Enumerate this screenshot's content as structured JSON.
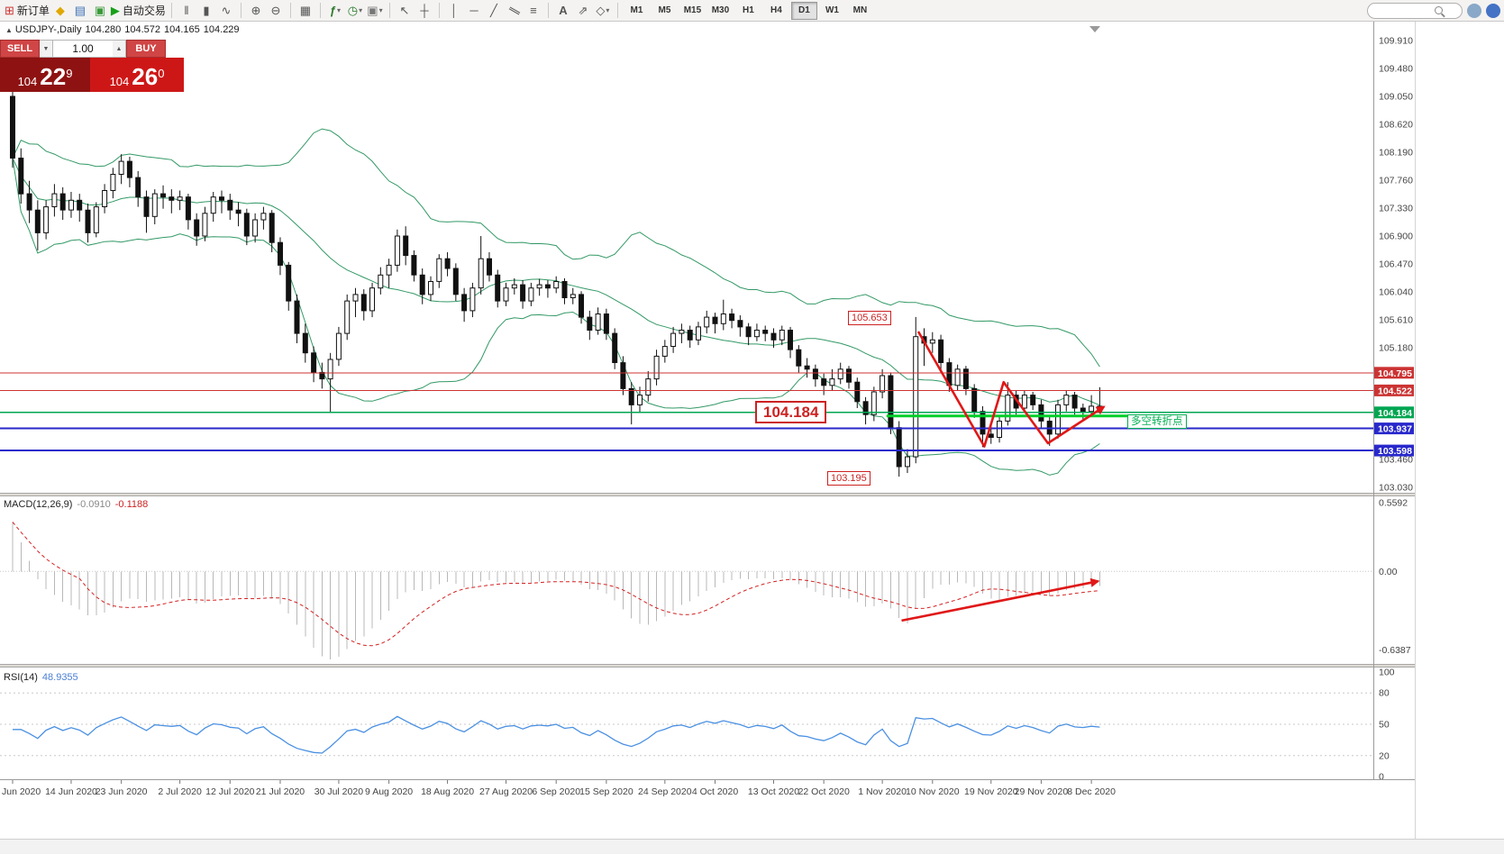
{
  "window": {
    "toolbar": {
      "new_order": "新订单",
      "autotrading": "自动交易",
      "timeframes": [
        "M1",
        "M5",
        "M15",
        "M30",
        "H1",
        "H4",
        "D1",
        "W1",
        "MN"
      ],
      "active_timeframe": "D1",
      "search_placeholder": "",
      "icons": {
        "new_order": "⊞",
        "mql": "◆",
        "market_watch": "▤",
        "data_window": "▣",
        "autotrading": "▶",
        "bars": "‖",
        "candles": "▮",
        "line": "∿",
        "zoom_in": "⊕",
        "zoom_out": "⊖",
        "tile": "▦",
        "indicators": "ƒ",
        "periods": "◷",
        "templates": "▣",
        "cursor": "↖",
        "crosshair": "┼",
        "vline": "│",
        "hline": "─",
        "trendline": "╱",
        "channel": "∥",
        "fibonacci": "≡",
        "text": "A",
        "arrows": "⇗",
        "shapes": "◇",
        "caret": "▾",
        "chart_marker": "▲"
      }
    }
  },
  "chart": {
    "title": {
      "symbol_period": "USDJPY-,Daily",
      "open": "104.280",
      "high": "104.572",
      "low": "104.165",
      "close": "104.229"
    },
    "one_click": {
      "sell_label": "SELL",
      "buy_label": "BUY",
      "lot": "1.00",
      "sell_price_main": "104",
      "sell_price_big": "22",
      "sell_price_sup": "9",
      "buy_price_main": "104",
      "buy_price_big": "26",
      "buy_price_sup": "0"
    },
    "annotations": {
      "high_label": "105.653",
      "low_label": "103.195",
      "key_level_label": "104.184",
      "pivot_note": "多空转折点"
    },
    "indicator_labels": {
      "macd_name": "MACD(12,26,9)",
      "macd_value": "-0.0910",
      "macd_signal": "-0.1188",
      "rsi_name": "RSI(14)",
      "rsi_value": "48.9355"
    }
  },
  "chart_data": {
    "type": "candlestick",
    "symbol": "USDJPY",
    "timeframe": "Daily",
    "price_axis": {
      "labels": [
        "109.910",
        "109.480",
        "109.050",
        "108.620",
        "108.190",
        "107.760",
        "107.330",
        "106.900",
        "106.470",
        "106.040",
        "105.610",
        "105.180",
        "103.460",
        "103.030"
      ]
    },
    "price_tags": [
      {
        "text": "104.795",
        "price": 104.795,
        "color": "#cc3333"
      },
      {
        "text": "104.522",
        "price": 104.522,
        "color": "#cc3333"
      },
      {
        "text": "104.184",
        "price": 104.184,
        "color": "#00a651"
      },
      {
        "text": "103.937",
        "price": 103.937,
        "color": "#2828cc"
      },
      {
        "text": "103.598",
        "price": 103.598,
        "color": "#2828cc"
      }
    ],
    "hlines": [
      {
        "name": "resistance-104.795",
        "price": 104.795,
        "color": "#cc3333",
        "width": 1
      },
      {
        "name": "resistance-104.522",
        "price": 104.522,
        "color": "#cc3333",
        "width": 1
      },
      {
        "name": "key-level-104.184",
        "price": 104.184,
        "color": "#00a651",
        "width": 1.2
      },
      {
        "name": "support-103.937",
        "price": 103.937,
        "color": "#2828cc",
        "width": 2
      },
      {
        "name": "support-103.598",
        "price": 103.598,
        "color": "#2828cc",
        "width": 2
      }
    ],
    "pivot_segment": {
      "price": 104.13,
      "from_idx": 104.5,
      "to_idx": 133.5,
      "color": "#00d02a",
      "width": 3
    },
    "zigzag": {
      "color": "#e01818",
      "width": 2.6,
      "points": [
        [
          108.3,
          105.43
        ],
        [
          116.2,
          103.66
        ],
        [
          118.5,
          104.65
        ],
        [
          123.8,
          103.71
        ],
        [
          130.5,
          104.27
        ]
      ]
    },
    "bollinger": {
      "period": 20,
      "deviation": 2,
      "color": "#339966"
    },
    "macd": {
      "label": "MACD(12,26,9)",
      "value": -0.091,
      "signal": -0.1188,
      "ema_fast_seed": 109.45,
      "ema_slow_seed": 108.9,
      "hist_color": "#b8b8b8",
      "signal_color": "#d42020",
      "scale_labels": [
        "0.5592",
        "0.00",
        "-0.6387"
      ],
      "trend_arrow": [
        [
          106.3,
          -0.4
        ],
        [
          129.8,
          -0.08
        ]
      ]
    },
    "rsi": {
      "label": "RSI(14)",
      "value": 48.9355,
      "period": 14,
      "seed_gain": 0.1,
      "seed_loss": 0.08,
      "color": "#4a90e2",
      "levels": [
        80,
        50,
        20
      ],
      "scale_labels": [
        "100",
        "80",
        "50",
        "20",
        "0"
      ]
    },
    "date_labels": [
      [
        "Jun 2020",
        0
      ],
      [
        "14 Jun 2020",
        7
      ],
      [
        "23 Jun 2020",
        13
      ],
      [
        "2 Jul 2020",
        20
      ],
      [
        "12 Jul 2020",
        26
      ],
      [
        "21 Jul 2020",
        32
      ],
      [
        "30 Jul 2020",
        39
      ],
      [
        "9 Aug 2020",
        45
      ],
      [
        "18 Aug 2020",
        52
      ],
      [
        "27 Aug 2020",
        59
      ],
      [
        "6 Sep 2020",
        65
      ],
      [
        "15 Sep 2020",
        71
      ],
      [
        "24 Sep 2020",
        78
      ],
      [
        "4 Oct 2020",
        84
      ],
      [
        "13 Oct 2020",
        91
      ],
      [
        "22 Oct 2020",
        97
      ],
      [
        "1 Nov 2020",
        104
      ],
      [
        "10 Nov 2020",
        110
      ],
      [
        "19 Nov 2020",
        117
      ],
      [
        "29 Nov 2020",
        123
      ],
      [
        "8 Dec 2020",
        129
      ]
    ],
    "candles": [
      [
        109.05,
        109.16,
        107.95,
        108.1
      ],
      [
        108.1,
        108.25,
        107.4,
        107.55
      ],
      [
        107.55,
        107.75,
        107.1,
        107.3
      ],
      [
        107.3,
        107.45,
        106.68,
        106.95
      ],
      [
        106.95,
        107.45,
        106.85,
        107.35
      ],
      [
        107.35,
        107.7,
        107.2,
        107.55
      ],
      [
        107.55,
        107.65,
        107.15,
        107.3
      ],
      [
        107.3,
        107.58,
        107.18,
        107.45
      ],
      [
        107.45,
        107.55,
        107.12,
        107.3
      ],
      [
        107.3,
        107.4,
        106.8,
        106.95
      ],
      [
        106.95,
        107.42,
        106.88,
        107.35
      ],
      [
        107.35,
        107.7,
        107.25,
        107.6
      ],
      [
        107.6,
        107.95,
        107.48,
        107.85
      ],
      [
        107.85,
        108.16,
        107.7,
        108.05
      ],
      [
        108.05,
        108.12,
        107.65,
        107.8
      ],
      [
        107.8,
        107.9,
        107.35,
        107.5
      ],
      [
        107.5,
        107.6,
        106.95,
        107.2
      ],
      [
        107.2,
        107.62,
        107.08,
        107.55
      ],
      [
        107.55,
        107.68,
        107.32,
        107.5
      ],
      [
        107.5,
        107.62,
        107.25,
        107.45
      ],
      [
        107.45,
        107.6,
        107.3,
        107.5
      ],
      [
        107.5,
        107.55,
        107.0,
        107.15
      ],
      [
        107.15,
        107.25,
        106.75,
        106.9
      ],
      [
        106.9,
        107.35,
        106.82,
        107.25
      ],
      [
        107.25,
        107.58,
        107.12,
        107.5
      ],
      [
        107.5,
        107.6,
        107.25,
        107.45
      ],
      [
        107.45,
        107.55,
        107.15,
        107.3
      ],
      [
        107.3,
        107.42,
        107.05,
        107.25
      ],
      [
        107.25,
        107.32,
        106.76,
        106.9
      ],
      [
        106.9,
        107.25,
        106.8,
        107.15
      ],
      [
        107.15,
        107.35,
        107.0,
        107.25
      ],
      [
        107.25,
        107.3,
        106.65,
        106.8
      ],
      [
        106.8,
        106.88,
        106.3,
        106.45
      ],
      [
        106.45,
        106.5,
        105.75,
        105.9
      ],
      [
        105.9,
        106.0,
        105.25,
        105.4
      ],
      [
        105.4,
        105.55,
        104.95,
        105.1
      ],
      [
        105.1,
        105.2,
        104.65,
        104.8
      ],
      [
        104.8,
        104.95,
        104.55,
        104.7
      ],
      [
        104.7,
        105.1,
        104.18,
        105.0
      ],
      [
        105.0,
        105.5,
        104.9,
        105.4
      ],
      [
        105.4,
        106.0,
        105.3,
        105.9
      ],
      [
        105.9,
        106.1,
        105.65,
        106.0
      ],
      [
        106.0,
        106.08,
        105.6,
        105.75
      ],
      [
        105.75,
        106.18,
        105.65,
        106.1
      ],
      [
        106.1,
        106.42,
        106.0,
        106.3
      ],
      [
        106.3,
        106.55,
        106.1,
        106.45
      ],
      [
        106.45,
        107.0,
        106.35,
        106.9
      ],
      [
        106.9,
        107.05,
        106.45,
        106.6
      ],
      [
        106.6,
        106.68,
        106.2,
        106.3
      ],
      [
        106.3,
        106.4,
        105.85,
        106.0
      ],
      [
        106.0,
        106.28,
        105.9,
        106.2
      ],
      [
        106.2,
        106.62,
        106.1,
        106.55
      ],
      [
        106.55,
        106.65,
        106.28,
        106.4
      ],
      [
        106.4,
        106.48,
        105.9,
        106.0
      ],
      [
        106.0,
        106.1,
        105.58,
        105.75
      ],
      [
        105.75,
        106.18,
        105.65,
        106.1
      ],
      [
        106.1,
        106.9,
        106.0,
        106.55
      ],
      [
        106.55,
        106.65,
        106.2,
        106.3
      ],
      [
        106.3,
        106.38,
        105.8,
        105.9
      ],
      [
        105.9,
        106.18,
        105.82,
        106.1
      ],
      [
        106.1,
        106.25,
        106.0,
        106.15
      ],
      [
        106.15,
        106.22,
        105.78,
        105.9
      ],
      [
        105.9,
        106.18,
        105.82,
        106.1
      ],
      [
        106.1,
        106.24,
        105.98,
        106.15
      ],
      [
        106.15,
        106.22,
        105.95,
        106.1
      ],
      [
        106.1,
        106.28,
        106.02,
        106.2
      ],
      [
        106.2,
        106.25,
        105.85,
        105.95
      ],
      [
        105.95,
        106.1,
        105.85,
        106.0
      ],
      [
        106.0,
        106.05,
        105.55,
        105.65
      ],
      [
        105.65,
        105.75,
        105.3,
        105.45
      ],
      [
        105.45,
        105.8,
        105.38,
        105.7
      ],
      [
        105.7,
        105.78,
        105.3,
        105.4
      ],
      [
        105.4,
        105.48,
        104.85,
        104.95
      ],
      [
        104.95,
        105.05,
        104.45,
        104.55
      ],
      [
        104.55,
        104.65,
        104.0,
        104.3
      ],
      [
        104.3,
        104.58,
        104.18,
        104.45
      ],
      [
        104.45,
        104.82,
        104.35,
        104.7
      ],
      [
        104.7,
        105.15,
        104.6,
        105.05
      ],
      [
        105.05,
        105.3,
        104.95,
        105.2
      ],
      [
        105.2,
        105.5,
        105.1,
        105.4
      ],
      [
        105.4,
        105.55,
        105.25,
        105.45
      ],
      [
        105.45,
        105.52,
        105.18,
        105.3
      ],
      [
        105.3,
        105.58,
        105.22,
        105.5
      ],
      [
        105.5,
        105.75,
        105.4,
        105.65
      ],
      [
        105.65,
        105.72,
        105.4,
        105.55
      ],
      [
        105.55,
        105.92,
        105.45,
        105.7
      ],
      [
        105.7,
        105.78,
        105.48,
        105.6
      ],
      [
        105.6,
        105.68,
        105.35,
        105.5
      ],
      [
        105.5,
        105.56,
        105.22,
        105.35
      ],
      [
        105.35,
        105.55,
        105.28,
        105.45
      ],
      [
        105.45,
        105.52,
        105.28,
        105.4
      ],
      [
        105.4,
        105.48,
        105.18,
        105.3
      ],
      [
        105.3,
        105.52,
        105.22,
        105.45
      ],
      [
        105.45,
        105.5,
        105.02,
        105.15
      ],
      [
        105.15,
        105.22,
        104.8,
        104.9
      ],
      [
        104.9,
        105.02,
        104.72,
        104.85
      ],
      [
        104.85,
        104.92,
        104.58,
        104.7
      ],
      [
        104.7,
        104.78,
        104.45,
        104.6
      ],
      [
        104.6,
        104.85,
        104.52,
        104.7
      ],
      [
        104.7,
        104.95,
        104.62,
        104.85
      ],
      [
        104.85,
        104.9,
        104.55,
        104.65
      ],
      [
        104.65,
        104.72,
        104.25,
        104.35
      ],
      [
        104.35,
        104.42,
        104.0,
        104.15
      ],
      [
        104.15,
        104.58,
        104.05,
        104.5
      ],
      [
        104.5,
        104.85,
        104.4,
        104.75
      ],
      [
        104.75,
        104.8,
        103.85,
        103.95
      ],
      [
        103.95,
        104.05,
        103.195,
        103.35
      ],
      [
        103.35,
        103.62,
        103.25,
        103.5
      ],
      [
        103.5,
        105.653,
        103.4,
        105.35
      ],
      [
        105.35,
        105.48,
        104.9,
        105.25
      ],
      [
        105.25,
        105.42,
        105.1,
        105.3
      ],
      [
        105.3,
        105.38,
        104.8,
        104.95
      ],
      [
        104.95,
        105.02,
        104.5,
        104.6
      ],
      [
        104.6,
        104.92,
        104.52,
        104.85
      ],
      [
        104.85,
        104.9,
        104.45,
        104.55
      ],
      [
        104.55,
        104.62,
        104.1,
        104.2
      ],
      [
        104.2,
        104.28,
        103.65,
        103.85
      ],
      [
        103.85,
        104.02,
        103.7,
        103.8
      ],
      [
        103.8,
        104.12,
        103.72,
        104.05
      ],
      [
        104.05,
        104.65,
        103.98,
        104.45
      ],
      [
        104.45,
        104.52,
        104.15,
        104.25
      ],
      [
        104.25,
        104.52,
        104.18,
        104.45
      ],
      [
        104.45,
        104.5,
        104.22,
        104.3
      ],
      [
        104.3,
        104.38,
        103.95,
        104.05
      ],
      [
        104.05,
        104.12,
        103.67,
        103.85
      ],
      [
        103.85,
        104.38,
        103.78,
        104.3
      ],
      [
        104.3,
        104.52,
        104.2,
        104.45
      ],
      [
        104.45,
        104.5,
        104.15,
        104.25
      ],
      [
        104.25,
        104.32,
        104.05,
        104.2
      ],
      [
        104.2,
        104.45,
        104.12,
        104.28
      ],
      [
        104.28,
        104.572,
        104.165,
        104.229
      ]
    ]
  }
}
